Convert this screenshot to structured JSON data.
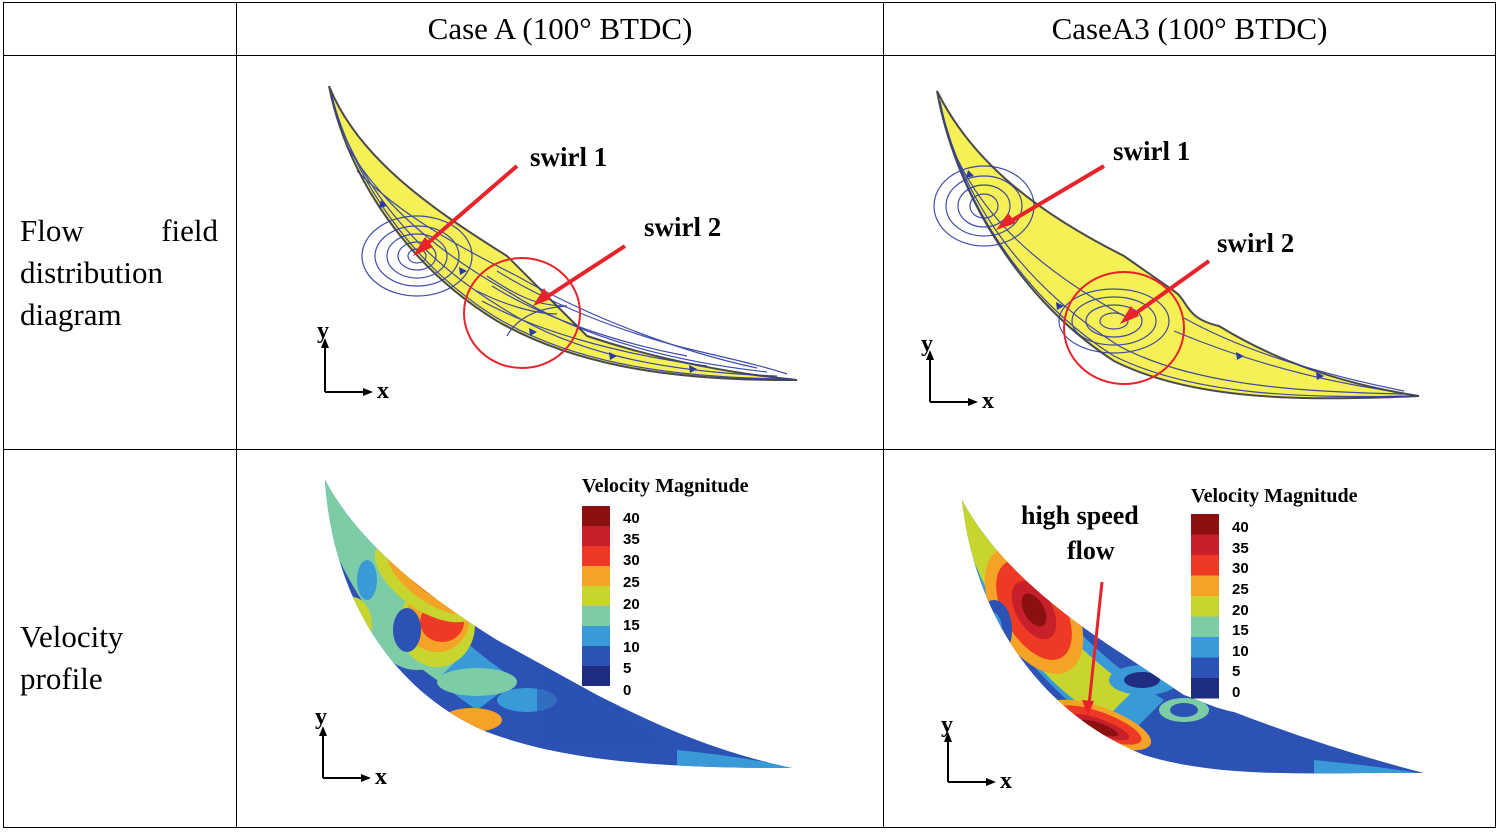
{
  "table": {
    "col_headers": [
      "",
      "Case A (100° BTDC)",
      "CaseA3 (100° BTDC)"
    ],
    "row_headers": {
      "flow_field": [
        "Flow",
        "field",
        "distribution",
        "diagram"
      ],
      "velocity": [
        "Velocity",
        "profile"
      ]
    }
  },
  "flow": {
    "case_a": {
      "swirl1": "swirl 1",
      "swirl2": "swirl 2"
    },
    "case_a3": {
      "swirl1": "swirl 1",
      "swirl2": "swirl 2"
    }
  },
  "axes": {
    "x": "x",
    "y": "y"
  },
  "velocity": {
    "legend_title": "Velocity Magnitude",
    "levels": [
      "40",
      "35",
      "30",
      "25",
      "20",
      "15",
      "10",
      "5",
      "0"
    ],
    "level_colors": [
      "#8b1010",
      "#c8202a",
      "#ee3a25",
      "#f5a326",
      "#c7d52e",
      "#7ccda6",
      "#3a9ad8",
      "#2b52b4",
      "#1e2d80"
    ],
    "case_a3_annotation": [
      "high speed",
      "flow"
    ]
  },
  "colors": {
    "flow_fill": "#f5f056",
    "streamline": "#2b3aa5",
    "arrow": "#e8232a",
    "circle": "#e8232a"
  }
}
